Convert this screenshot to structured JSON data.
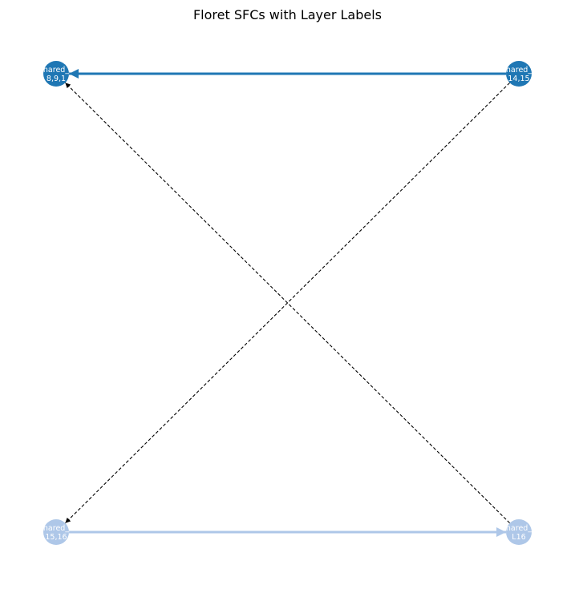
{
  "title": "Floret SFCs with Layer Labels",
  "colors": {
    "chain_dark": "#1f77b4",
    "chain_light": "#aec7e8",
    "cross_edge": "#000000",
    "label_text": "#ffffff"
  },
  "nodes": [
    {
      "id": "n_tl",
      "line1": "hared_",
      "line2": "8,9,1",
      "color": "chain_dark"
    },
    {
      "id": "n_tr",
      "line1": "hared_",
      "line2": "14,15",
      "color": "chain_dark"
    },
    {
      "id": "n_bl",
      "line1": "hared_",
      "line2": "15,16",
      "color": "chain_light"
    },
    {
      "id": "n_br",
      "line1": "hared_",
      "line2": "L16",
      "color": "chain_light"
    }
  ],
  "edges": [
    {
      "from": "n_tr",
      "to": "n_tl",
      "style": "solid",
      "color": "chain_dark"
    },
    {
      "from": "n_bl",
      "to": "n_br",
      "style": "solid",
      "color": "chain_light"
    },
    {
      "from": "n_br",
      "to": "n_tl",
      "style": "dashed",
      "color": "cross_edge"
    },
    {
      "from": "n_tr",
      "to": "n_bl",
      "style": "dashed",
      "color": "cross_edge"
    }
  ]
}
